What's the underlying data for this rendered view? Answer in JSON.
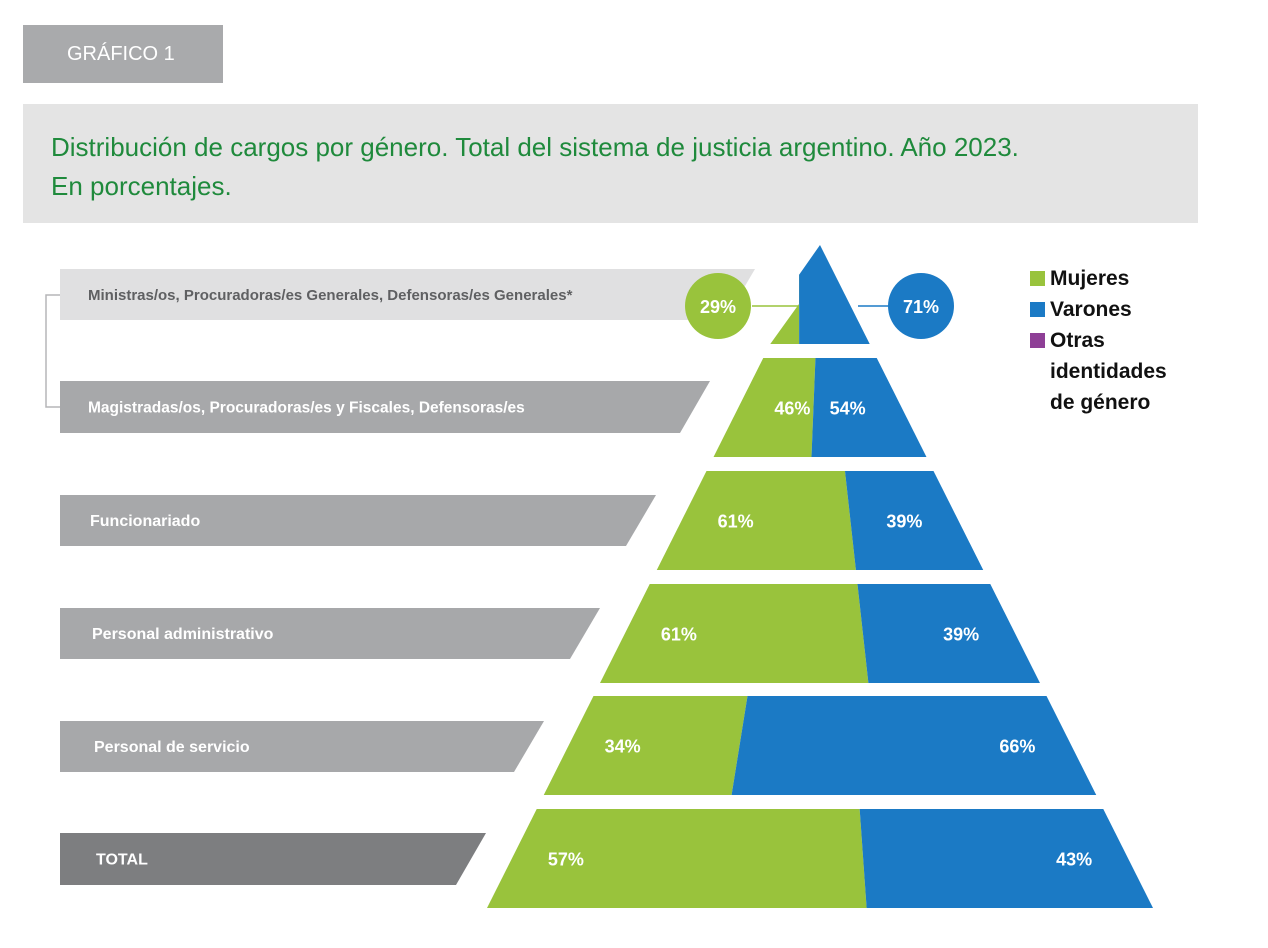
{
  "header": {
    "tag": "GRÁFICO 1",
    "title_line1": "Distribución de cargos por género. Total del sistema de justicia argentino. Año 2023.",
    "title_line2": "En porcentajes."
  },
  "colors": {
    "women": "#99c33c",
    "men": "#1b7ac5",
    "other": "#8e3f96",
    "label_light": "#e0e0e1",
    "label_gray": "#a7a8aa",
    "label_dark": "#7d7e80"
  },
  "chart_data": {
    "type": "pyramid-stacked-bar",
    "title": "Distribución de cargos por género. Total del sistema de justicia argentino. Año 2023. En porcentajes.",
    "legend": [
      {
        "key": "women",
        "label": "Mujeres"
      },
      {
        "key": "men",
        "label": "Varones"
      },
      {
        "key": "other",
        "label_lines": [
          "Otras",
          "identidades",
          "de género"
        ]
      }
    ],
    "categories": [
      "Ministras/os, Procuradoras/es Generales, Defensoras/es Generales*",
      "Magistradas/os, Procuradoras/es y Fiscales, Defensoras/es",
      "Funcionariado",
      "Personal administrativo",
      "Personal de servicio",
      "TOTAL"
    ],
    "series": [
      {
        "name": "Mujeres",
        "values": [
          29,
          46,
          61,
          61,
          34,
          57
        ],
        "labels": [
          "29%",
          "46%",
          "61%",
          "61%",
          "34%",
          "57%"
        ]
      },
      {
        "name": "Varones",
        "values": [
          71,
          54,
          39,
          39,
          66,
          43
        ],
        "labels": [
          "71%",
          "54%",
          "39%",
          "39%",
          "66%",
          "43%"
        ]
      }
    ],
    "unit": "%"
  }
}
